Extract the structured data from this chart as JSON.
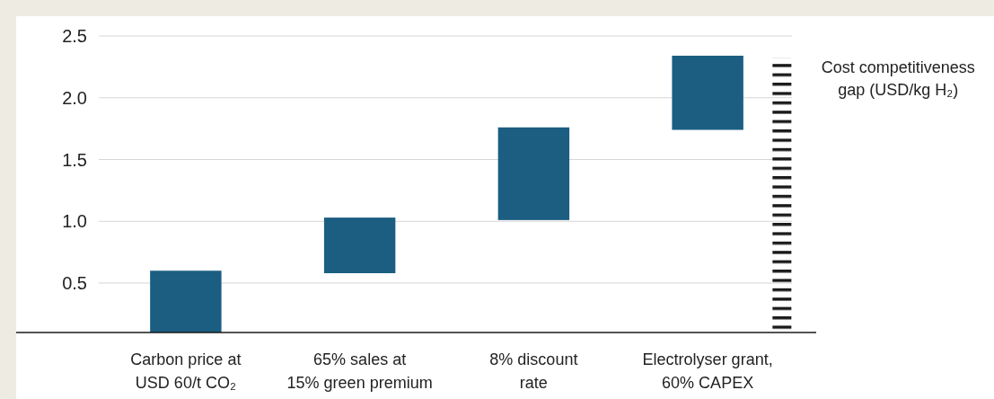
{
  "chart_data": {
    "type": "bar",
    "categories": [
      "Carbon price at\nUSD 60/t CO₂",
      "65% sales at\n15% green premium",
      "8% discount\nrate",
      "Electrolyser grant,\n60% CAPEX"
    ],
    "series": [
      {
        "color": "#1b5e82",
        "values": [
          0.5,
          0.45,
          0.75,
          0.6
        ],
        "base": [
          0.1,
          0.58,
          1.01,
          1.74
        ]
      },
      {
        "name": "Cost competitiveness\ngap (USD/kg H₂)",
        "color": "#1a1a1a",
        "line_style": "dashed",
        "values": [
          null,
          null,
          null,
          2.22
        ],
        "base": [
          null,
          null,
          null,
          0.1
        ]
      }
    ],
    "ylim": [
      0.1,
      2.5
    ],
    "yticks": [
      0.5,
      {
        "value": 1,
        "label": "1.0"
      },
      1.5,
      {
        "value": 2,
        "label": "2.0"
      },
      2.5
    ],
    "grid": "y"
  }
}
